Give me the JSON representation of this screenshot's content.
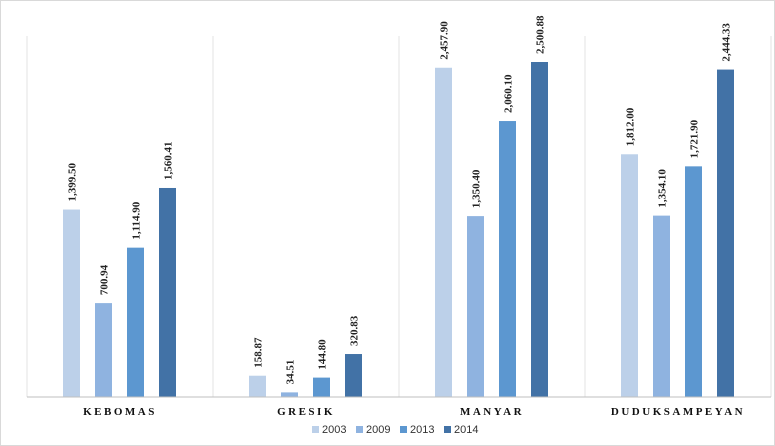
{
  "chart_data": {
    "type": "bar",
    "categories": [
      "KEBOMAS",
      "GRESIK",
      "MANYAR",
      "DUDUKSAMPEYAN"
    ],
    "series": [
      {
        "name": "2003",
        "color": "#bcd0e9",
        "values": [
          1399.5,
          158.87,
          2457.9,
          1812.0
        ],
        "labels": [
          "1,399.50",
          "158.87",
          "2,457.90",
          "1,812.00"
        ]
      },
      {
        "name": "2009",
        "color": "#8fb3e0",
        "values": [
          700.94,
          34.51,
          1350.4,
          1354.1
        ],
        "labels": [
          "700.94",
          "34.51",
          "1,350.40",
          "1,354.10"
        ]
      },
      {
        "name": "2013",
        "color": "#5c97d0",
        "values": [
          1114.9,
          144.8,
          2060.1,
          1721.9
        ],
        "labels": [
          "1,114.90",
          "144.80",
          "2,060.10",
          "1,721.90"
        ]
      },
      {
        "name": "2014",
        "color": "#4272a6",
        "values": [
          1560.41,
          320.83,
          2500.88,
          2444.33
        ],
        "labels": [
          "1,560.41",
          "320.83",
          "2,500.88",
          "2,444.33"
        ]
      }
    ],
    "ylim": [
      0,
      2700
    ],
    "grid": "vertical",
    "legend": "bottom",
    "title": "",
    "xlabel": "",
    "ylabel": ""
  }
}
